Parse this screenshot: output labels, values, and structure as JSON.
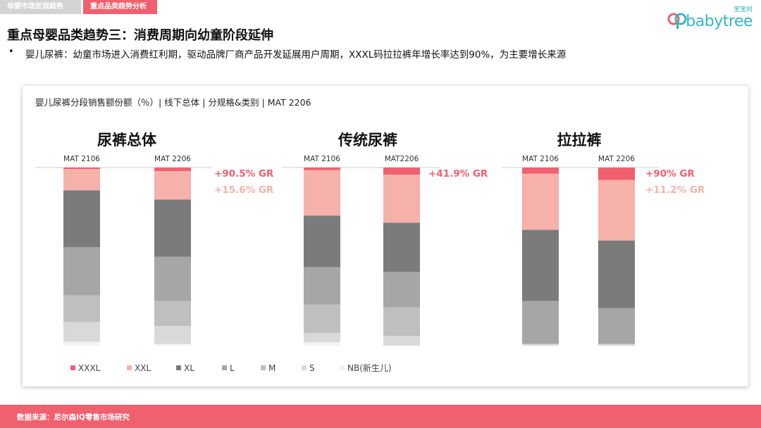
{
  "header": {
    "tabs": [
      {
        "label": "母婴市场宏观趋势",
        "active": false
      },
      {
        "label": "重点品类趋势分析",
        "active": true
      }
    ],
    "logo": {
      "cn": "宝宝树",
      "en": "babytree"
    }
  },
  "title": "重点母婴品类趋势三：消费周期向幼童阶段延伸",
  "bullet": {
    "dot": "•",
    "text": "婴儿尿裤：幼童市场进入消费红利期，驱动品牌厂商产品开发延展用户周期，XXXL码拉拉裤年增长率达到90%，为主要增长来源"
  },
  "chart_subtitle": "婴儿尿裤分段销售额份额（％）| 线下总体 | 分规格&类别 | MAT 2206",
  "footer": {
    "source": "数据来源：尼尔森IQ零售市场研究"
  },
  "colors": {
    "XXXL": "#f0606e",
    "XXL": "#f5b1aa",
    "XL": "#7b7b7b",
    "L": "#a6a6a6",
    "M": "#bfbfbf",
    "S": "#d9d9d9",
    "NB": "#f2f2f2"
  },
  "chart_data": {
    "type": "bar",
    "stacked": true,
    "percent_stacked": true,
    "segments_top_to_bottom": [
      "XXXL",
      "XXL",
      "XL",
      "L",
      "M",
      "S",
      "NB(新生儿)"
    ],
    "legend": [
      "XXXL",
      "XXL",
      "XL",
      "L",
      "M",
      "S",
      "NB(新生儿)"
    ],
    "ylim": [
      0,
      100
    ],
    "panels": [
      {
        "title": "尿裤总体",
        "categories": [
          "MAT 2106",
          "MAT 2206"
        ],
        "values": [
          [
            0.8,
            12.0,
            32.0,
            27.0,
            15.0,
            11.0,
            2.2
          ],
          [
            2.0,
            16.0,
            32.0,
            25.0,
            14.0,
            10.0,
            1.0
          ]
        ],
        "annotations": [
          "+90.5% GR",
          "+15.6% GR"
        ]
      },
      {
        "title": "传统尿裤",
        "categories": [
          "MAT 2106",
          "MAT2206"
        ],
        "values": [
          [
            1.5,
            25.5,
            29.0,
            21.0,
            16.0,
            5.0,
            2.0
          ],
          [
            4.0,
            27.0,
            27.5,
            20.0,
            16.0,
            5.5,
            0.0
          ]
        ],
        "annotations": [
          "+41.9% GR"
        ]
      },
      {
        "title": "拉拉裤",
        "categories": [
          "MAT 2106",
          "MAT 2206"
        ],
        "values": [
          [
            3.5,
            31.5,
            40.0,
            24.0,
            0.0,
            1.0,
            0.0
          ],
          [
            7.0,
            34.0,
            38.0,
            20.0,
            0.0,
            1.0,
            0.0
          ]
        ],
        "annotations": [
          "+90% GR",
          "+11.2% GR"
        ]
      }
    ]
  }
}
